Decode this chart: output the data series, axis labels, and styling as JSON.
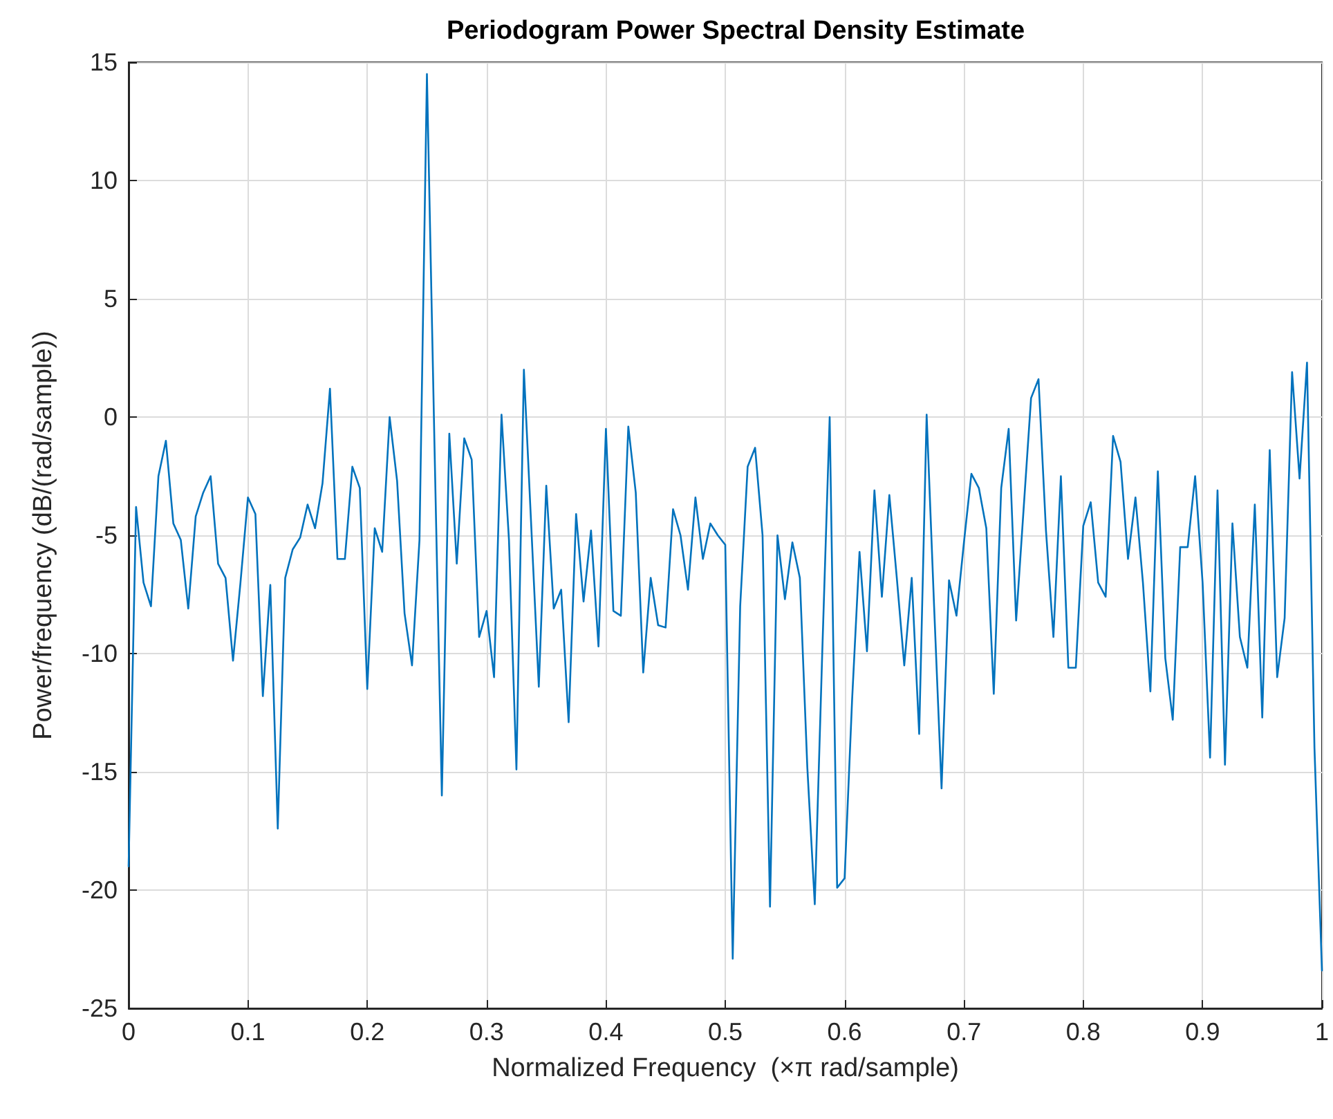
{
  "chart_data": {
    "type": "line",
    "title": "Periodogram Power Spectral Density Estimate",
    "xlabel": "Normalized Frequency  (×π rad/sample)",
    "ylabel": "Power/frequency (dB/(rad/sample))",
    "x": [
      0,
      0.00625,
      0.0125,
      0.01875,
      0.025,
      0.03125,
      0.0375,
      0.04375,
      0.05,
      0.05625,
      0.0625,
      0.06875,
      0.075,
      0.08125,
      0.0875,
      0.09375,
      0.1,
      0.10625,
      0.1125,
      0.11875,
      0.125,
      0.13125,
      0.1375,
      0.14375,
      0.15,
      0.15625,
      0.1625,
      0.16875,
      0.175,
      0.18125,
      0.1875,
      0.19375,
      0.2,
      0.20625,
      0.2125,
      0.21875,
      0.225,
      0.23125,
      0.2375,
      0.24375,
      0.25,
      0.25625,
      0.2625,
      0.26875,
      0.275,
      0.28125,
      0.2875,
      0.29375,
      0.3,
      0.30625,
      0.3125,
      0.31875,
      0.325,
      0.33125,
      0.3375,
      0.34375,
      0.35,
      0.35625,
      0.3625,
      0.36875,
      0.375,
      0.38125,
      0.3875,
      0.39375,
      0.4,
      0.40625,
      0.4125,
      0.41875,
      0.425,
      0.43125,
      0.4375,
      0.44375,
      0.45,
      0.45625,
      0.4625,
      0.46875,
      0.475,
      0.48125,
      0.4875,
      0.49375,
      0.5,
      0.50625,
      0.5125,
      0.51875,
      0.525,
      0.53125,
      0.5375,
      0.54375,
      0.55,
      0.55625,
      0.5625,
      0.56875,
      0.575,
      0.58125,
      0.5875,
      0.59375,
      0.6,
      0.60625,
      0.6125,
      0.61875,
      0.625,
      0.63125,
      0.6375,
      0.64375,
      0.65,
      0.65625,
      0.6625,
      0.66875,
      0.675,
      0.68125,
      0.6875,
      0.69375,
      0.7,
      0.70625,
      0.7125,
      0.71875,
      0.725,
      0.73125,
      0.7375,
      0.74375,
      0.75,
      0.75625,
      0.7625,
      0.76875,
      0.775,
      0.78125,
      0.7875,
      0.79375,
      0.8,
      0.80625,
      0.8125,
      0.81875,
      0.825,
      0.83125,
      0.8375,
      0.84375,
      0.85,
      0.85625,
      0.8625,
      0.86875,
      0.875,
      0.88125,
      0.8875,
      0.89375,
      0.9,
      0.90625,
      0.9125,
      0.91875,
      0.925,
      0.93125,
      0.9375,
      0.94375,
      0.95,
      0.95625,
      0.9625,
      0.96875,
      0.975,
      0.98125,
      0.9875,
      0.99375,
      1
    ],
    "series": [
      {
        "color": "#0072bd",
        "values": [
          -19.0,
          -3.8,
          -7.0,
          -8.0,
          -2.5,
          -1.0,
          -4.5,
          -5.2,
          -8.1,
          -4.2,
          -3.2,
          -2.5,
          -6.2,
          -6.8,
          -10.3,
          -7.0,
          -3.4,
          -4.1,
          -11.8,
          -7.1,
          -17.4,
          -6.8,
          -5.6,
          -5.1,
          -3.7,
          -4.7,
          -2.8,
          1.2,
          -6.0,
          -6.0,
          -2.1,
          -3.0,
          -11.5,
          -4.7,
          -5.7,
          0.0,
          -2.7,
          -8.3,
          -10.5,
          -5.2,
          14.5,
          -1.0,
          -16.0,
          -0.7,
          -6.2,
          -0.9,
          -1.8,
          -9.3,
          -8.2,
          -11.0,
          0.1,
          -5.2,
          -14.9,
          2.0,
          -4.7,
          -11.4,
          -2.9,
          -8.1,
          -7.3,
          -12.9,
          -4.1,
          -7.8,
          -4.8,
          -9.7,
          -0.5,
          -8.2,
          -8.4,
          -0.4,
          -3.2,
          -10.8,
          -6.8,
          -8.8,
          -8.9,
          -3.9,
          -5.0,
          -7.3,
          -3.4,
          -6.0,
          -4.5,
          -5.0,
          -5.4,
          -22.9,
          -8.0,
          -2.1,
          -1.3,
          -5.0,
          -20.7,
          -5.0,
          -7.7,
          -5.3,
          -6.8,
          -14.8,
          -20.6,
          -10.0,
          0.0,
          -19.9,
          -19.5,
          -12.0,
          -5.7,
          -9.9,
          -3.1,
          -7.6,
          -3.3,
          -6.8,
          -10.5,
          -6.8,
          -13.4,
          0.1,
          -8.0,
          -15.7,
          -6.9,
          -8.4,
          -5.3,
          -2.4,
          -3.0,
          -4.7,
          -11.7,
          -3.0,
          -0.5,
          -8.6,
          -3.9,
          0.8,
          1.6,
          -4.8,
          -9.3,
          -2.5,
          -10.6,
          -10.6,
          -4.6,
          -3.6,
          -7.0,
          -7.6,
          -0.8,
          -1.9,
          -6.0,
          -3.4,
          -7.0,
          -11.6,
          -2.3,
          -10.2,
          -12.8,
          -5.5,
          -5.5,
          -2.5,
          -7.0,
          -14.4,
          -3.1,
          -14.7,
          -4.5,
          -9.3,
          -10.6,
          -3.7,
          -12.7,
          -1.4,
          -11.0,
          -8.5,
          1.9,
          -2.6,
          2.3,
          -14.0,
          -23.4
        ]
      }
    ],
    "xlim": [
      0,
      1
    ],
    "xticks": [
      0,
      0.1,
      0.2,
      0.3,
      0.4,
      0.5,
      0.6,
      0.7,
      0.8,
      0.9,
      1
    ],
    "ylim": [
      -25,
      15
    ],
    "yticks": [
      -25,
      -20,
      -15,
      -10,
      -5,
      0,
      5,
      10,
      15
    ],
    "grid": true,
    "marker": "none",
    "line_style": "solid"
  }
}
